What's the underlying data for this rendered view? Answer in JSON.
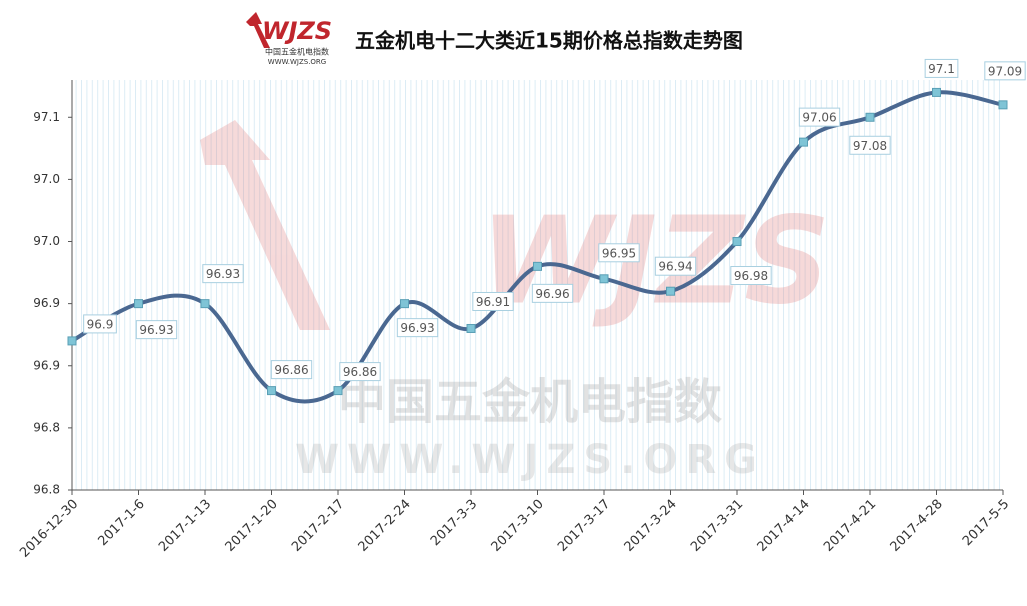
{
  "chart_data": {
    "type": "line",
    "title": "五金机电十二大类近15期价格总指数走势图",
    "logo": {
      "mark": "WJZS",
      "name": "中国五金机电指数",
      "url": "WWW.WJZS.ORG"
    },
    "watermark": {
      "mark": "WJZS",
      "name": "中国五金机电指数",
      "url": "WWW.WJZS.ORG"
    },
    "categories": [
      "2016-12-30",
      "2017-1-6",
      "2017-1-13",
      "2017-1-20",
      "2017-2-17",
      "2017-2-24",
      "2017-3-3",
      "2017-3-10",
      "2017-3-17",
      "2017-3-24",
      "2017-3-31",
      "2017-4-14",
      "2017-4-21",
      "2017-4-28",
      "2017-5-5"
    ],
    "series": [
      {
        "color": "#4a6891",
        "marker_color": "#7fc4d6",
        "values": [
          96.9,
          96.93,
          96.93,
          96.86,
          96.86,
          96.93,
          96.91,
          96.96,
          96.95,
          96.94,
          96.98,
          97.06,
          97.08,
          97.1,
          97.09
        ]
      }
    ],
    "ylim": [
      96.78,
      97.11
    ],
    "yticks": [
      {
        "value": 96.78,
        "label": "96.8"
      },
      {
        "value": 96.83,
        "label": "96.8"
      },
      {
        "value": 96.88,
        "label": "96.9"
      },
      {
        "value": 96.93,
        "label": "96.9"
      },
      {
        "value": 96.98,
        "label": "97.0"
      },
      {
        "value": 97.03,
        "label": "97.0"
      },
      {
        "value": 97.08,
        "label": "97.1"
      }
    ],
    "grid": true
  }
}
